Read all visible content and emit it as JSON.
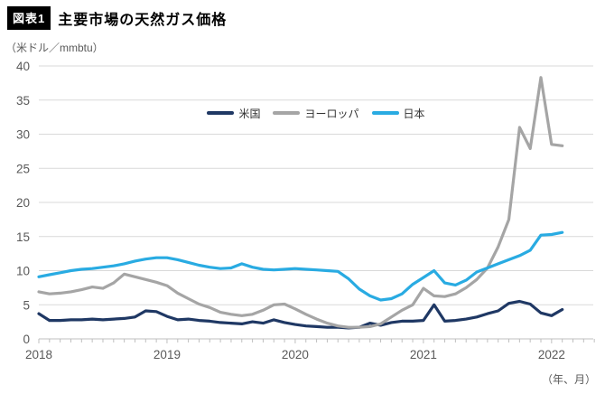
{
  "header": {
    "badge": "図表1",
    "title": "主要市場の天然ガス価格"
  },
  "unit_label": "（米ドル／mmbtu）",
  "axis_note": "（年、月）",
  "chart_data": {
    "type": "line",
    "title": "主要市場の天然ガス価格",
    "ylabel": "米ドル/mmbtu",
    "ylim": [
      0,
      40
    ],
    "y_tick_step": 5,
    "grid": true,
    "legend_position": "top-center",
    "x_unit": "month",
    "x_start": "2018-01",
    "x_end": "2022-02",
    "n_points": 50,
    "x_tick_labels": [
      "2018",
      "2019",
      "2020",
      "2021",
      "2022"
    ],
    "series": [
      {
        "id": "us",
        "name": "米国",
        "color": "#1f3864",
        "values": [
          3.7,
          2.7,
          2.7,
          2.8,
          2.8,
          2.9,
          2.8,
          2.9,
          3.0,
          3.2,
          4.1,
          4.0,
          3.3,
          2.8,
          2.9,
          2.7,
          2.6,
          2.4,
          2.3,
          2.2,
          2.5,
          2.3,
          2.8,
          2.4,
          2.1,
          1.9,
          1.8,
          1.7,
          1.7,
          1.6,
          1.7,
          2.3,
          2.0,
          2.4,
          2.6,
          2.6,
          2.7,
          5.0,
          2.6,
          2.7,
          2.9,
          3.2,
          3.7,
          4.1,
          5.2,
          5.5,
          5.1,
          3.8,
          3.4,
          4.3
        ]
      },
      {
        "id": "europe",
        "name": "ヨーロッパ",
        "color": "#a5a5a5",
        "values": [
          6.9,
          6.6,
          6.7,
          6.9,
          7.2,
          7.6,
          7.4,
          8.2,
          9.5,
          9.1,
          8.7,
          8.3,
          7.8,
          6.7,
          5.9,
          5.1,
          4.6,
          3.9,
          3.6,
          3.4,
          3.6,
          4.2,
          5.0,
          5.1,
          4.4,
          3.6,
          2.9,
          2.3,
          1.9,
          1.7,
          1.7,
          1.8,
          2.2,
          3.2,
          4.2,
          5.0,
          7.4,
          6.3,
          6.2,
          6.6,
          7.5,
          8.7,
          10.4,
          13.5,
          17.5,
          31.0,
          27.9,
          38.3,
          28.5,
          28.3
        ]
      },
      {
        "id": "japan",
        "name": "日本",
        "color": "#29abe2",
        "values": [
          9.1,
          9.4,
          9.7,
          10.0,
          10.2,
          10.3,
          10.5,
          10.7,
          11.0,
          11.4,
          11.7,
          11.9,
          11.9,
          11.6,
          11.2,
          10.8,
          10.5,
          10.3,
          10.4,
          11.0,
          10.5,
          10.2,
          10.1,
          10.2,
          10.3,
          10.2,
          10.1,
          10.0,
          9.9,
          8.8,
          7.3,
          6.3,
          5.7,
          5.9,
          6.6,
          8.0,
          9.0,
          10.0,
          8.2,
          7.9,
          8.6,
          9.8,
          10.4,
          11.0,
          11.6,
          12.2,
          13.0,
          15.2,
          15.3,
          15.6
        ]
      }
    ]
  }
}
